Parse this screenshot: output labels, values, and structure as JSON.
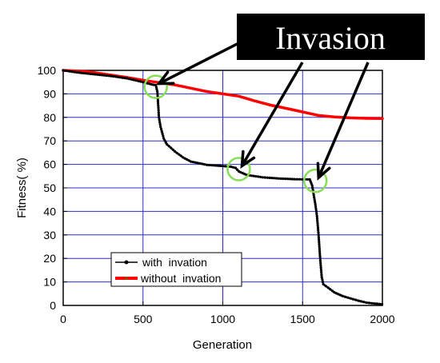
{
  "chart_data": {
    "type": "line",
    "title": "",
    "xlabel": "Generation",
    "ylabel": "Fitness(  %)",
    "xlim": [
      0,
      2000
    ],
    "ylim": [
      0,
      100
    ],
    "xticks": [
      "0",
      "500",
      "1000",
      "1500",
      "2000"
    ],
    "yticks": [
      "0",
      "10",
      "20",
      "30",
      "40",
      "50",
      "60",
      "70",
      "80",
      "90",
      "100"
    ],
    "grid": true,
    "grid_color": "#2b2bcc",
    "legend_position": "bottom-left",
    "series": [
      {
        "name": "with  invation",
        "color": "#000000",
        "points": [
          [
            0,
            100
          ],
          [
            100,
            99
          ],
          [
            200,
            98.3
          ],
          [
            300,
            97.6
          ],
          [
            400,
            96.6
          ],
          [
            500,
            95
          ],
          [
            555,
            94
          ],
          [
            580,
            93.7
          ],
          [
            590,
            91
          ],
          [
            600,
            80
          ],
          [
            610,
            76
          ],
          [
            630,
            71
          ],
          [
            650,
            68.5
          ],
          [
            700,
            65.5
          ],
          [
            750,
            63
          ],
          [
            800,
            61.2
          ],
          [
            900,
            59.8
          ],
          [
            1000,
            59.3
          ],
          [
            1050,
            59
          ],
          [
            1080,
            58.5
          ],
          [
            1100,
            57
          ],
          [
            1150,
            55.5
          ],
          [
            1250,
            54.5
          ],
          [
            1350,
            54
          ],
          [
            1450,
            53.7
          ],
          [
            1545,
            53.6
          ],
          [
            1560,
            51
          ],
          [
            1570,
            47
          ],
          [
            1580,
            43
          ],
          [
            1590,
            38
          ],
          [
            1600,
            30
          ],
          [
            1610,
            20
          ],
          [
            1620,
            12
          ],
          [
            1630,
            9
          ],
          [
            1660,
            7.5
          ],
          [
            1700,
            5.5
          ],
          [
            1750,
            4
          ],
          [
            1800,
            3
          ],
          [
            1850,
            2
          ],
          [
            1900,
            1.2
          ],
          [
            1950,
            0.8
          ],
          [
            2000,
            0.5
          ]
        ]
      },
      {
        "name": "without  invation",
        "color": "#ff0000",
        "points": [
          [
            0,
            100
          ],
          [
            150,
            99.5
          ],
          [
            300,
            98
          ],
          [
            400,
            97
          ],
          [
            500,
            95.8
          ],
          [
            600,
            94.8
          ],
          [
            700,
            93.8
          ],
          [
            800,
            92.4
          ],
          [
            900,
            91
          ],
          [
            1000,
            90
          ],
          [
            1100,
            89
          ],
          [
            1200,
            87
          ],
          [
            1300,
            85.2
          ],
          [
            1400,
            83.8
          ],
          [
            1500,
            82.3
          ],
          [
            1600,
            80.8
          ],
          [
            1700,
            80.2
          ],
          [
            1800,
            79.8
          ],
          [
            1900,
            79.6
          ],
          [
            2000,
            79.5
          ]
        ]
      }
    ],
    "highlights": [
      {
        "x": 580,
        "y": 93
      },
      {
        "x": 1100,
        "y": 58
      },
      {
        "x": 1580,
        "y": 53
      }
    ],
    "annotation": {
      "text": "Invasion",
      "background": "#000000",
      "color": "#ffffff",
      "highlight_color": "#88dd55"
    }
  }
}
